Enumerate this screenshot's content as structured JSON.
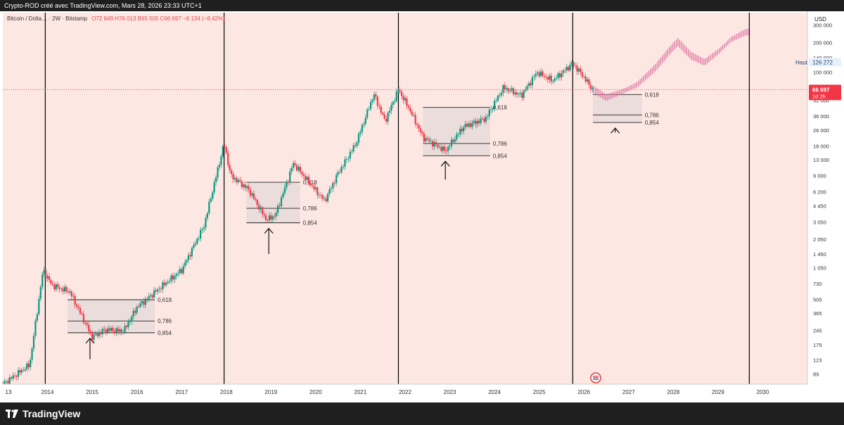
{
  "header": {
    "attribution": "Crypto-ROD créé avec TradingView.com, Mars 28, 2026 23:33 UTC+1"
  },
  "legend": {
    "symbol": "Bitcoin / Dolla… · 2W · Bitstamp",
    "ohlc": "O72 849  H76 013  B65 505  C66 697  −6 134 (−8,42%)"
  },
  "axis": {
    "currency": "USD",
    "price_ticks": [
      "300 000",
      "200 000",
      "140 000",
      "100 000",
      "52 000",
      "36 000",
      "26 000",
      "18 000",
      "13 000",
      "9 000",
      "6 200",
      "4 450",
      "3 050",
      "2 050",
      "1 450",
      "1 050",
      "730",
      "505",
      "365",
      "245",
      "175",
      "123",
      "89"
    ],
    "year_ticks": [
      "13",
      "2014",
      "2015",
      "2016",
      "2017",
      "2018",
      "2019",
      "2020",
      "2021",
      "2022",
      "2023",
      "2024",
      "2025",
      "2026",
      "2027",
      "2028",
      "2029",
      "2030"
    ],
    "high_label": "Haut",
    "high_value": "126 272",
    "current_price": "66 697",
    "countdown": "1d 2h"
  },
  "chart_data": {
    "type": "candlestick",
    "title": "Bitcoin / Dollar · 2W · Bitstamp",
    "y_scale": "log",
    "ylim": [
      70,
      400000
    ],
    "xlim": [
      2013.0,
      2031.0
    ],
    "cycle_lines": [
      2013.95,
      2017.95,
      2021.85,
      2025.75,
      2029.7
    ],
    "current_price": 66697,
    "all_time_high": 126272,
    "price_path": [
      [
        2013.0,
        70
      ],
      [
        2013.6,
        110
      ],
      [
        2013.9,
        1000
      ],
      [
        2014.1,
        700
      ],
      [
        2014.5,
        600
      ],
      [
        2015.0,
        210
      ],
      [
        2015.3,
        250
      ],
      [
        2015.7,
        240
      ],
      [
        2016.0,
        420
      ],
      [
        2016.5,
        650
      ],
      [
        2017.0,
        1000
      ],
      [
        2017.5,
        2800
      ],
      [
        2017.95,
        19000
      ],
      [
        2018.1,
        9000
      ],
      [
        2018.5,
        6500
      ],
      [
        2018.9,
        3200
      ],
      [
        2019.1,
        3600
      ],
      [
        2019.5,
        12000
      ],
      [
        2019.9,
        7200
      ],
      [
        2020.2,
        5000
      ],
      [
        2020.5,
        9500
      ],
      [
        2020.9,
        19000
      ],
      [
        2021.3,
        60000
      ],
      [
        2021.55,
        32000
      ],
      [
        2021.85,
        67000
      ],
      [
        2022.1,
        42000
      ],
      [
        2022.4,
        22000
      ],
      [
        2022.9,
        16000
      ],
      [
        2023.3,
        28000
      ],
      [
        2023.8,
        34000
      ],
      [
        2024.2,
        70000
      ],
      [
        2024.6,
        58000
      ],
      [
        2024.95,
        100000
      ],
      [
        2025.3,
        82000
      ],
      [
        2025.75,
        123000
      ],
      [
        2025.95,
        95000
      ],
      [
        2026.2,
        66697
      ]
    ],
    "projection_path": [
      [
        2026.2,
        66697
      ],
      [
        2026.5,
        55000
      ],
      [
        2026.8,
        62000
      ],
      [
        2027.2,
        75000
      ],
      [
        2027.6,
        110000
      ],
      [
        2027.9,
        160000
      ],
      [
        2028.1,
        200000
      ],
      [
        2028.4,
        145000
      ],
      [
        2028.7,
        125000
      ],
      [
        2029.0,
        160000
      ],
      [
        2029.3,
        215000
      ],
      [
        2029.6,
        250000
      ],
      [
        2029.7,
        255000
      ]
    ],
    "fib_zones": [
      {
        "x": [
          2014.45,
          2016.4
        ],
        "levels": [
          {
            "label": "0,618",
            "price": 500
          },
          {
            "label": "0,786",
            "price": 305
          },
          {
            "label": "0,854",
            "price": 232
          }
        ],
        "arrow_x": 2014.95,
        "arrow_price": 125
      },
      {
        "x": [
          2018.45,
          2019.65
        ],
        "levels": [
          {
            "label": "0,618",
            "price": 7700
          },
          {
            "label": "0,786",
            "price": 4200
          },
          {
            "label": "0,854",
            "price": 3000
          }
        ],
        "arrow_x": 2018.95,
        "arrow_price": 1450
      },
      {
        "x": [
          2022.4,
          2023.9
        ],
        "levels": [
          {
            "label": "0,618",
            "price": 44000
          },
          {
            "label": "0,786",
            "price": 19000
          },
          {
            "label": "0,854",
            "price": 14300
          }
        ],
        "arrow_x": 2022.9,
        "arrow_price": 8200
      },
      {
        "x": [
          2026.2,
          2027.3
        ],
        "levels": [
          {
            "label": "0,618",
            "price": 59500
          },
          {
            "label": "0,786",
            "price": 37000
          },
          {
            "label": "0,854",
            "price": 31000
          }
        ],
        "arrow_x": 2026.7,
        "arrow_price": 24500
      }
    ]
  },
  "colors": {
    "background": "#fde7e3",
    "bull": "#089981",
    "bear": "#f23645",
    "projection": "#e27fa8",
    "fib_zone": "#e7dbd9",
    "price_tag": "#f23645",
    "high_tag": "#e8f1fb"
  },
  "footer": {
    "brand": "TradingView"
  }
}
